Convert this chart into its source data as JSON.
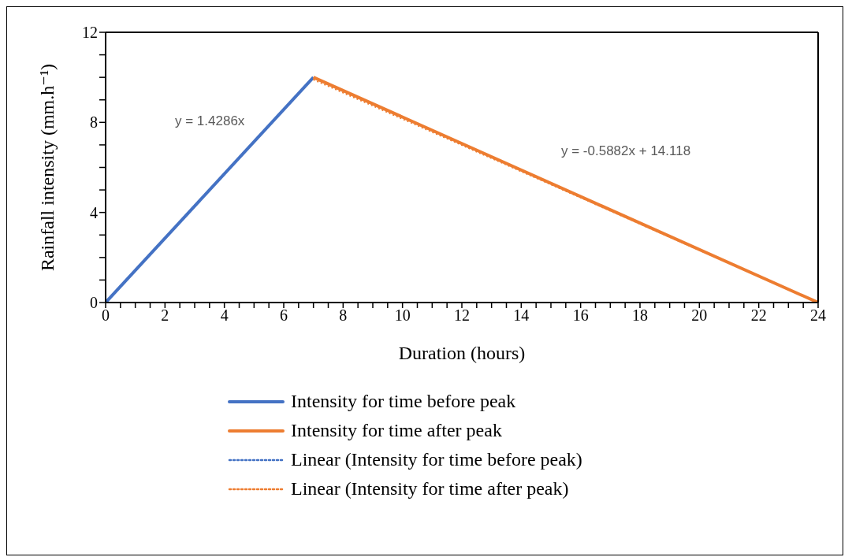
{
  "chart_data": {
    "type": "line",
    "xlabel": "Duration (hours)",
    "ylabel": "Rainfall intensity (mm.h⁻¹)",
    "xlim": [
      0,
      24
    ],
    "ylim": [
      0,
      12
    ],
    "xticks": [
      0,
      {
        "value": 0.5,
        "label": null
      },
      {
        "value": 1,
        "label": null
      },
      {
        "value": 1.5,
        "label": null
      },
      2,
      {
        "value": 2.5,
        "label": null
      },
      {
        "value": 3,
        "label": null
      },
      {
        "value": 3.5,
        "label": null
      },
      4,
      {
        "value": 4.5,
        "label": null
      },
      {
        "value": 5,
        "label": null
      },
      {
        "value": 5.5,
        "label": null
      },
      6,
      {
        "value": 6.5,
        "label": null
      },
      {
        "value": 7,
        "label": null
      },
      {
        "value": 7.5,
        "label": null
      },
      8,
      {
        "value": 8.5,
        "label": null
      },
      {
        "value": 9,
        "label": null
      },
      {
        "value": 9.5,
        "label": null
      },
      10,
      {
        "value": 10.5,
        "label": null
      },
      {
        "value": 11,
        "label": null
      },
      {
        "value": 11.5,
        "label": null
      },
      12,
      {
        "value": 12.5,
        "label": null
      },
      {
        "value": 13,
        "label": null
      },
      {
        "value": 13.5,
        "label": null
      },
      14,
      {
        "value": 14.5,
        "label": null
      },
      {
        "value": 15,
        "label": null
      },
      {
        "value": 15.5,
        "label": null
      },
      16,
      {
        "value": 16.5,
        "label": null
      },
      {
        "value": 17,
        "label": null
      },
      {
        "value": 17.5,
        "label": null
      },
      18,
      {
        "value": 18.5,
        "label": null
      },
      {
        "value": 19,
        "label": null
      },
      {
        "value": 19.5,
        "label": null
      },
      20,
      {
        "value": 20.5,
        "label": null
      },
      {
        "value": 21,
        "label": null
      },
      {
        "value": 21.5,
        "label": null
      },
      22,
      {
        "value": 22.5,
        "label": null
      },
      {
        "value": 23,
        "label": null
      },
      {
        "value": 23.5,
        "label": null
      },
      24
    ],
    "yticks": [
      0,
      {
        "value": 1,
        "label": null
      },
      {
        "value": 2,
        "label": null
      },
      {
        "value": 3,
        "label": null
      },
      4,
      {
        "value": 5,
        "label": null
      },
      {
        "value": 6,
        "label": null
      },
      {
        "value": 7,
        "label": null
      },
      8,
      {
        "value": 9,
        "label": null
      },
      {
        "value": 10,
        "label": null
      },
      {
        "value": 11,
        "label": null
      },
      12
    ],
    "legend": "bottom",
    "marker": "none",
    "series": [
      {
        "name": "Intensity for time before peak",
        "color": "#4472c4",
        "x": [
          0,
          7
        ],
        "values": [
          0,
          10
        ],
        "line_style": "solid"
      },
      {
        "name": "Intensity for time after peak",
        "color": "#ed7d31",
        "x": [
          7,
          24
        ],
        "values": [
          10,
          0
        ],
        "line_style": "solid"
      },
      {
        "name": "Linear (Intensity for time before peak)",
        "color": "#4472c4",
        "line_style": "dotted"
      },
      {
        "name": "Linear (Intensity for time after peak)",
        "color": "#ed7d31",
        "x": [
          7,
          24
        ],
        "values": [
          9.9,
          0
        ],
        "line_style": "dotted"
      }
    ],
    "annotations": [
      "y = 1.4286x",
      "y = -0.5882x + 14.118"
    ]
  }
}
